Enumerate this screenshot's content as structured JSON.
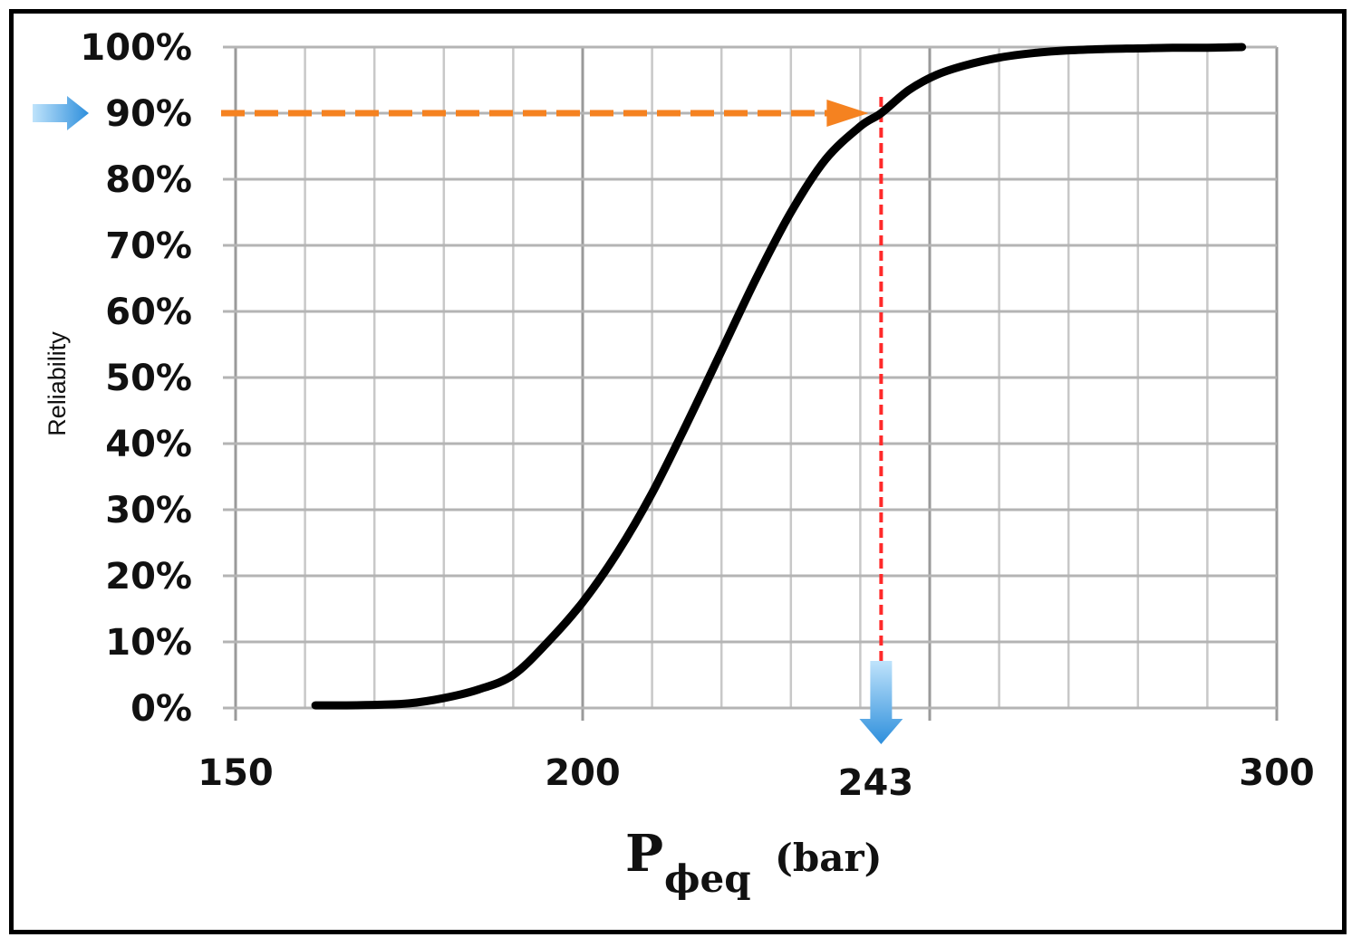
{
  "chart_data": {
    "type": "line",
    "title": "",
    "xlabel": {
      "main": "P",
      "subscript": "ϕeq",
      "unit": "(bar)"
    },
    "ylabel": "Reliability",
    "xlim": [
      150,
      300
    ],
    "ylim": [
      0,
      100
    ],
    "x_ticks": [
      "150",
      "200",
      "300"
    ],
    "y_ticks": [
      "0%",
      "10%",
      "20%",
      "30%",
      "40%",
      "50%",
      "60%",
      "70%",
      "80%",
      "90%",
      "100%"
    ],
    "x_grid_step": 10,
    "y_grid_step": 10,
    "grid": true,
    "legend": "none",
    "series": [
      {
        "x": [
          161.5,
          166,
          171,
          175,
          180,
          185,
          190,
          195,
          200,
          205,
          210,
          215,
          220,
          225,
          230,
          235,
          240,
          243,
          247,
          251,
          255,
          260,
          265,
          270,
          275,
          280,
          285,
          290,
          295
        ],
        "y": [
          0.4,
          0.4,
          0.5,
          0.7,
          1.5,
          2.8,
          5.0,
          10.0,
          16.0,
          23.5,
          32.5,
          43.0,
          54.0,
          65.0,
          75.0,
          83.0,
          88.0,
          90.0,
          93.5,
          95.8,
          97.2,
          98.4,
          99.1,
          99.5,
          99.7,
          99.8,
          99.9,
          99.9,
          100.0
        ],
        "color": "#000000"
      }
    ],
    "annotations": {
      "threshold_y": 90,
      "threshold_x": 243,
      "threshold_x_label": "243",
      "horizontal_arrow_color": "#f58220",
      "vertical_line_color": "#ff2a2a",
      "marker_arrow_color": "#3a9be0"
    }
  }
}
